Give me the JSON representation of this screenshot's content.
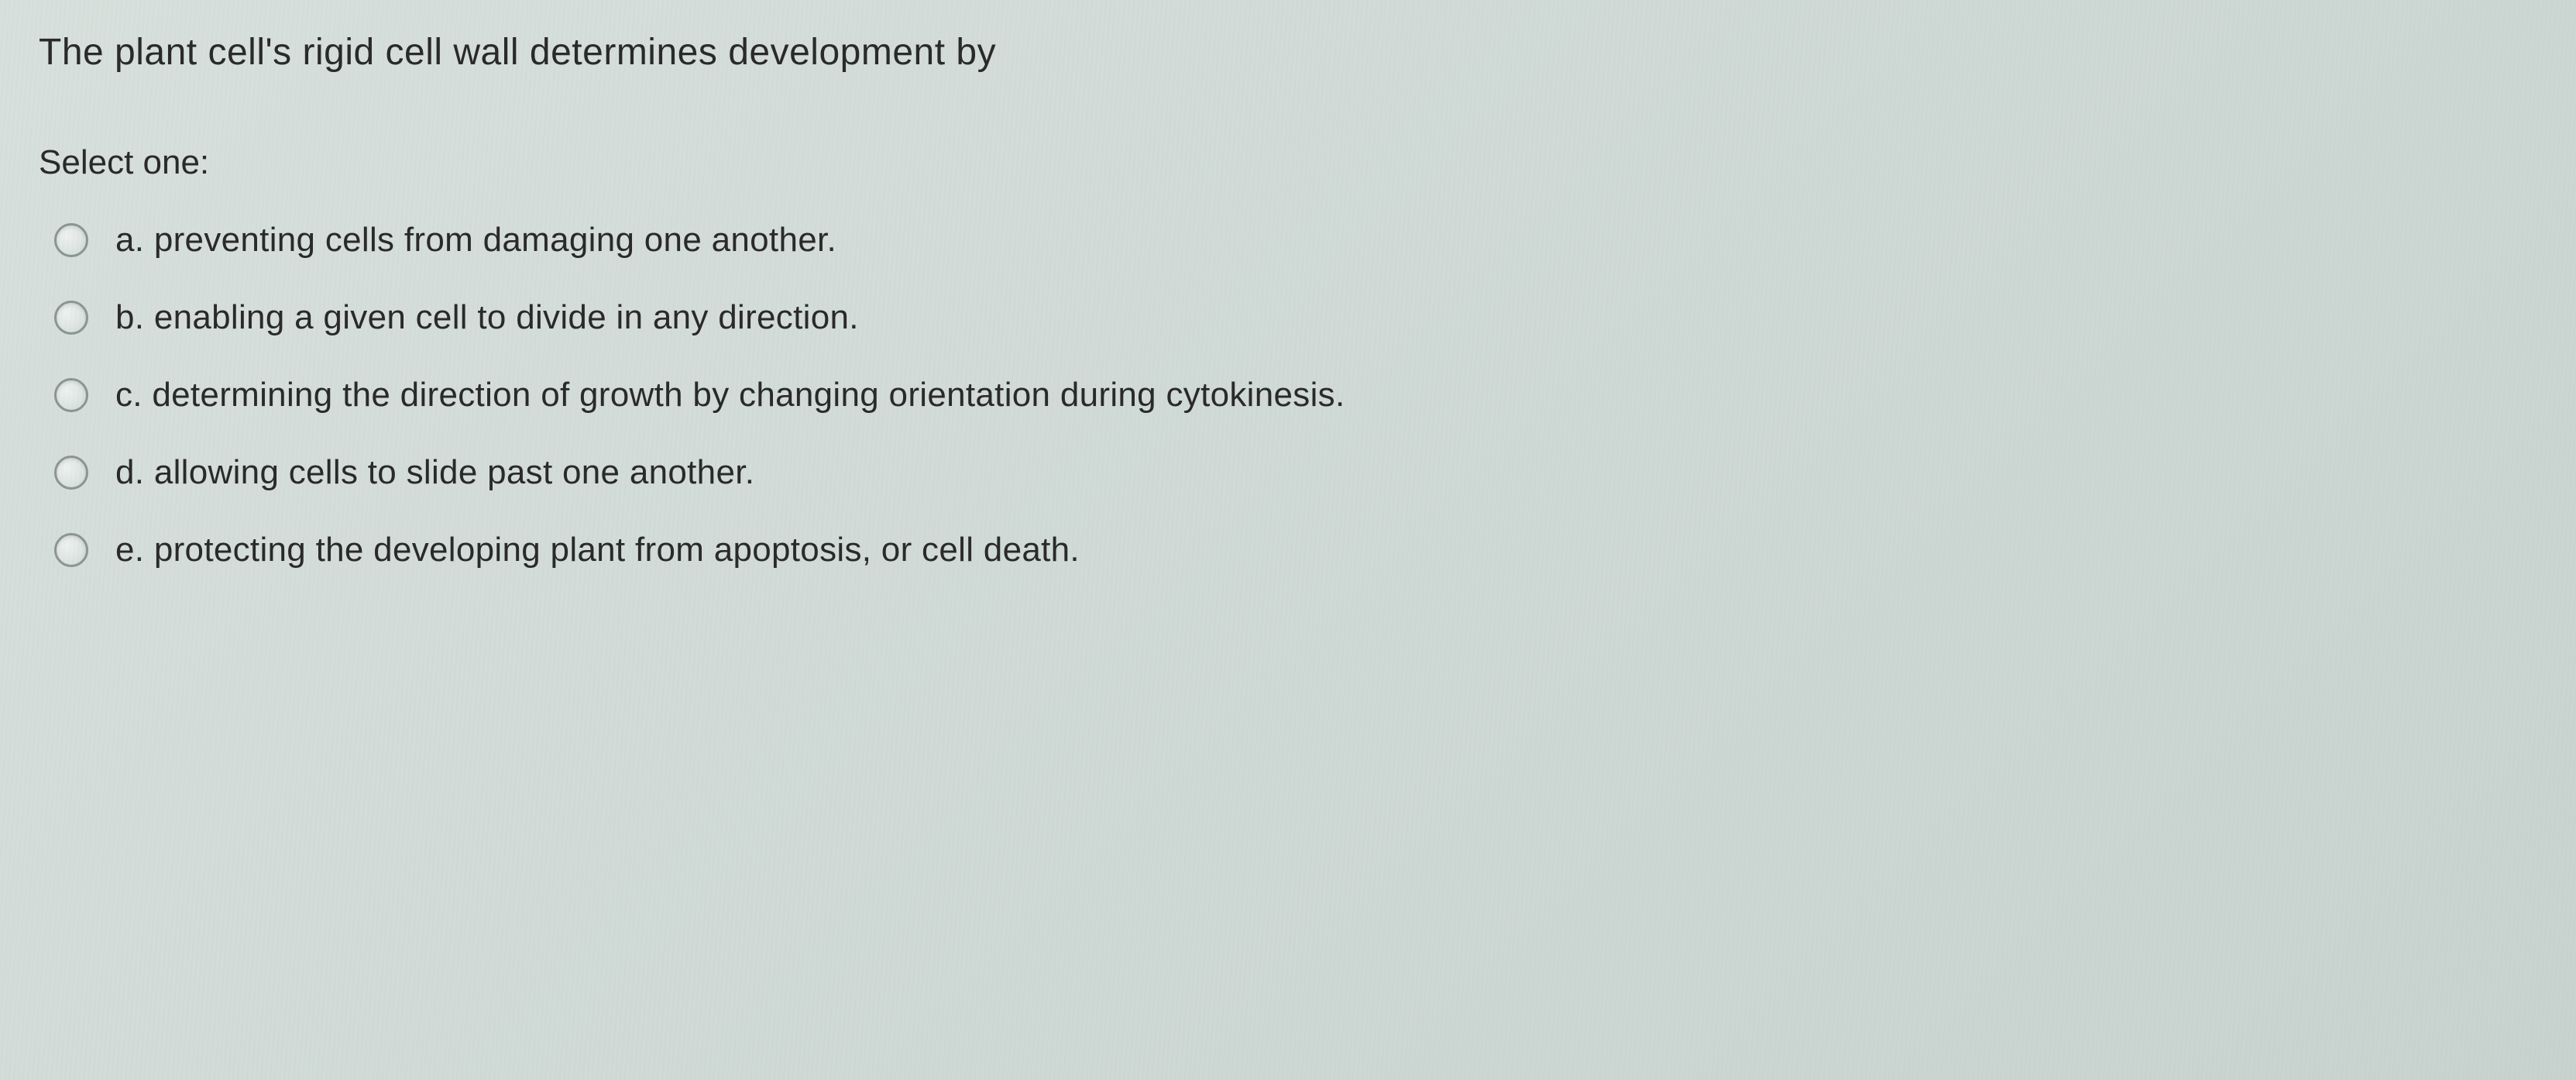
{
  "question": {
    "text": "The plant cell's rigid cell wall determines development by",
    "prompt": "Select one:",
    "options": [
      {
        "letter": "a.",
        "text": "preventing cells from damaging one another."
      },
      {
        "letter": "b.",
        "text": "enabling a given cell to divide in any direction."
      },
      {
        "letter": "c.",
        "text": "determining the direction of growth by changing orientation during cytokinesis."
      },
      {
        "letter": "d.",
        "text": "allowing cells to slide past one another."
      },
      {
        "letter": "e.",
        "text": "protecting the developing plant from apoptosis, or cell death."
      }
    ]
  },
  "colors": {
    "background": "#d2dcd8",
    "text": "#2a2a2a",
    "radio_border": "#8a9691",
    "radio_fill": "#d0dad6"
  }
}
